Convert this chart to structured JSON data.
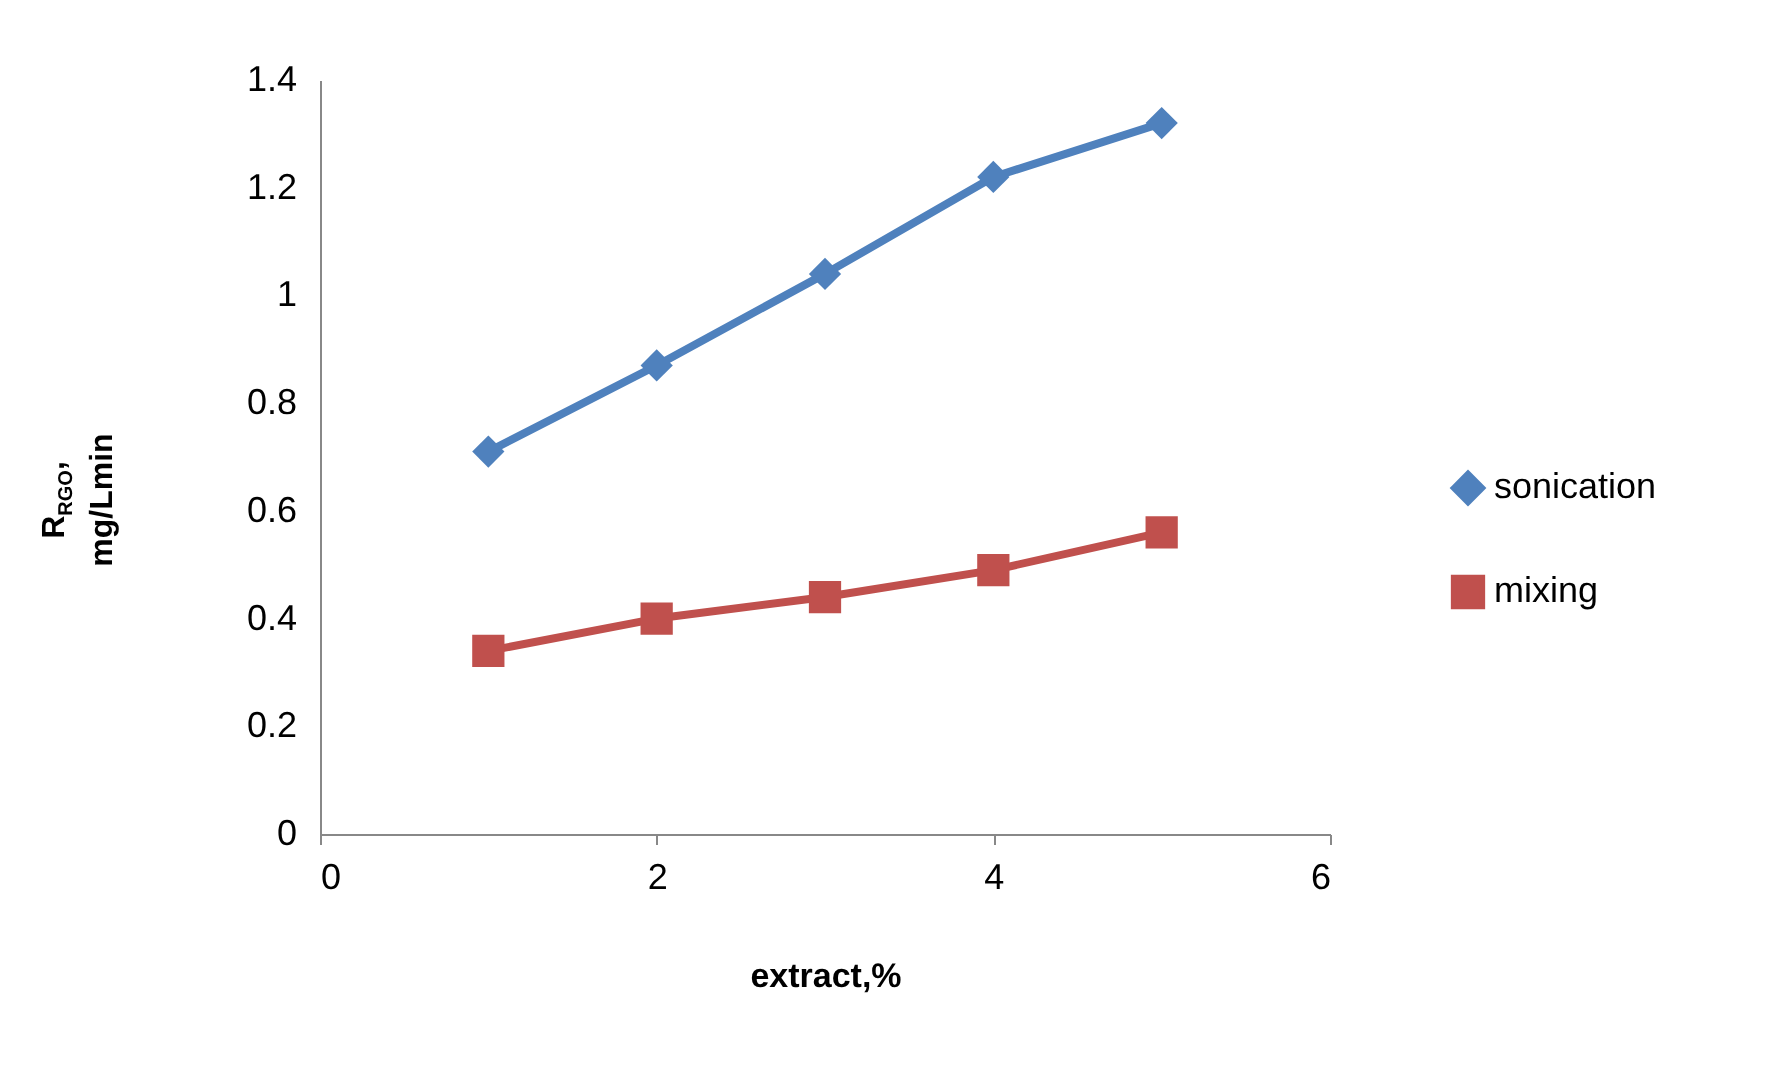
{
  "chart_data": {
    "type": "line",
    "xlabel": "extract,%",
    "ylabel": "R$_{RGO}$,\nmg/Lmin",
    "x": [
      1,
      2,
      3,
      4,
      5
    ],
    "series": [
      {
        "name": "sonication",
        "color": "#4f81bd",
        "marker": "diamond",
        "values": [
          0.71,
          0.87,
          1.04,
          1.22,
          1.32
        ]
      },
      {
        "name": "mixing",
        "color": "#c0504d",
        "marker": "square",
        "values": [
          0.34,
          0.4,
          0.44,
          0.49,
          0.56
        ]
      }
    ],
    "xlim": [
      0,
      6
    ],
    "xticks": [
      0,
      2,
      4,
      6
    ],
    "ylim": [
      0,
      1.4
    ],
    "yticks": [
      0,
      0.2,
      0.4,
      0.6,
      0.8,
      1,
      1.2,
      1.4
    ],
    "grid": false,
    "legend": "right",
    "line_style": "solid"
  }
}
